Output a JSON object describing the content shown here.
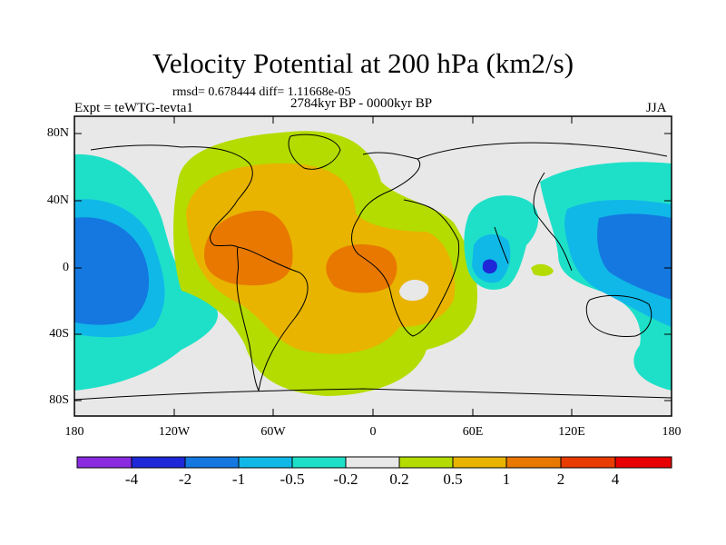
{
  "figure": {
    "title": "Velocity Potential at 200 hPa (km2/s)",
    "stats": "rmsd= 0.678444 diff= 1.11668e-05",
    "experiment": "Expt = teWTG-tevta1",
    "period": "2784kyr BP - 0000kyr BP",
    "season": "JJA"
  },
  "axes": {
    "y_ticks": [
      "80N",
      "40N",
      "0",
      "40S",
      "80S"
    ],
    "x_ticks": [
      "180",
      "120W",
      "60W",
      "0",
      "60E",
      "120E",
      "180"
    ]
  },
  "colorbar": {
    "labels": [
      "-4",
      "-2",
      "-1",
      "-0.5",
      "-0.2",
      "0.2",
      "0.5",
      "1",
      "2",
      "4"
    ],
    "colors": [
      "#8a2be2",
      "#1e28d8",
      "#1478e0",
      "#10b8e8",
      "#1ee0c8",
      "#e8e8e8",
      "#b4dc00",
      "#e8b400",
      "#e87800",
      "#e83c00",
      "#e80000"
    ]
  },
  "map": {
    "background": "#e8e8e8",
    "land_outline": "#000000"
  }
}
